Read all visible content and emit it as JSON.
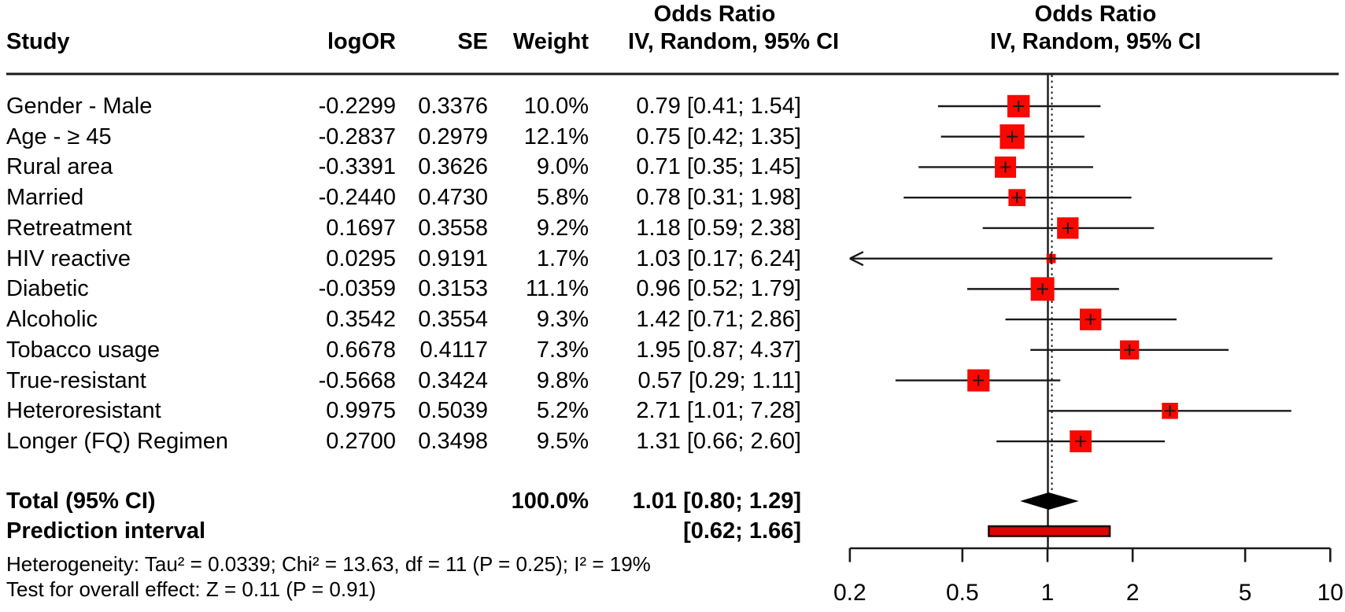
{
  "figure": {
    "header": {
      "study": "Study",
      "logor": "logOR",
      "se": "SE",
      "weight": "Weight",
      "effect_col_title": "Odds Ratio",
      "effect_col_subtitle": "IV, Random, 95% CI",
      "plot_col_title": "Odds Ratio",
      "plot_col_subtitle": "IV, Random, 95% CI"
    },
    "footer": {
      "heterogeneity": "Heterogeneity: Tau² = 0.0339; Chi² = 13.63, df = 11 (P = 0.25); I² = 19%",
      "overall_test": "Test for overall effect: Z = 0.11 (P = 0.91)"
    }
  },
  "chart_data": {
    "type": "forest",
    "x_scale": "log",
    "x_ticks": [
      0.2,
      0.5,
      1,
      2,
      5,
      10
    ],
    "x_min": 0.2,
    "x_max": 10,
    "ref_line": 1.0,
    "pooled_effect": 1.01,
    "marker_color": "#f80800",
    "prediction_bar_fill": "#df0500",
    "line_color": "#1a1a1a",
    "rows": [
      {
        "study": "Gender - Male",
        "logor": "-0.2299",
        "se": "0.3376",
        "weight": "10.0%",
        "weight_value": 10.0,
        "or": 0.79,
        "ci_low": 0.41,
        "ci_high": 1.54
      },
      {
        "study": "Age - ≥ 45",
        "logor": "-0.2837",
        "se": "0.2979",
        "weight": "12.1%",
        "weight_value": 12.1,
        "or": 0.75,
        "ci_low": 0.42,
        "ci_high": 1.35
      },
      {
        "study": "Rural area",
        "logor": "-0.3391",
        "se": "0.3626",
        "weight": "9.0%",
        "weight_value": 9.0,
        "or": 0.71,
        "ci_low": 0.35,
        "ci_high": 1.45
      },
      {
        "study": "Married",
        "logor": "-0.2440",
        "se": "0.4730",
        "weight": "5.8%",
        "weight_value": 5.8,
        "or": 0.78,
        "ci_low": 0.31,
        "ci_high": 1.98
      },
      {
        "study": "Retreatment",
        "logor": "0.1697",
        "se": "0.3558",
        "weight": "9.2%",
        "weight_value": 9.2,
        "or": 1.18,
        "ci_low": 0.59,
        "ci_high": 2.38
      },
      {
        "study": "HIV reactive",
        "logor": "0.0295",
        "se": "0.9191",
        "weight": "1.7%",
        "weight_value": 1.7,
        "or": 1.03,
        "ci_low": 0.17,
        "ci_high": 6.24,
        "clip_low": true
      },
      {
        "study": "Diabetic",
        "logor": "-0.0359",
        "se": "0.3153",
        "weight": "11.1%",
        "weight_value": 11.1,
        "or": 0.96,
        "ci_low": 0.52,
        "ci_high": 1.79
      },
      {
        "study": "Alcoholic",
        "logor": "0.3542",
        "se": "0.3554",
        "weight": "9.3%",
        "weight_value": 9.3,
        "or": 1.42,
        "ci_low": 0.71,
        "ci_high": 2.86
      },
      {
        "study": "Tobacco usage",
        "logor": "0.6678",
        "se": "0.4117",
        "weight": "7.3%",
        "weight_value": 7.3,
        "or": 1.95,
        "ci_low": 0.87,
        "ci_high": 4.37
      },
      {
        "study": "True-resistant",
        "logor": "-0.5668",
        "se": "0.3424",
        "weight": "9.8%",
        "weight_value": 9.8,
        "or": 0.57,
        "ci_low": 0.29,
        "ci_high": 1.11
      },
      {
        "study": "Heteroresistant",
        "logor": "0.9975",
        "se": "0.5039",
        "weight": "5.2%",
        "weight_value": 5.2,
        "or": 2.71,
        "ci_low": 1.01,
        "ci_high": 7.28
      },
      {
        "study": "Longer (FQ) Regimen",
        "logor": "0.2700",
        "se": "0.3498",
        "weight": "9.5%",
        "weight_value": 9.5,
        "or": 1.31,
        "ci_low": 0.66,
        "ci_high": 2.6
      }
    ],
    "total": {
      "label": "Total (95% CI)",
      "weight": "100.0%",
      "or": 1.01,
      "ci_low": 0.8,
      "ci_high": 1.29
    },
    "prediction": {
      "label": "Prediction interval",
      "ci_low": 0.62,
      "ci_high": 1.66
    }
  }
}
